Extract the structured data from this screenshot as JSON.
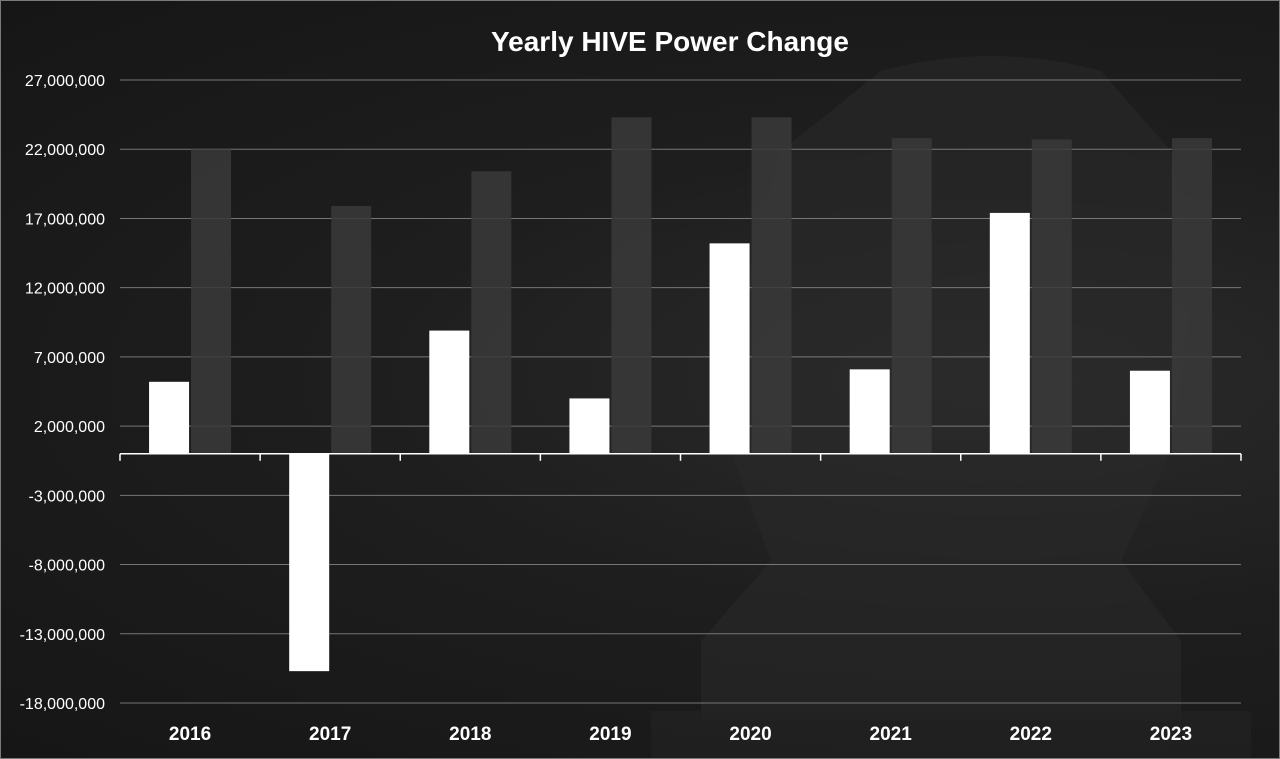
{
  "colors": {
    "background": "#1c1c1c",
    "primary_bar": "#ffffff",
    "secondary_bar": "#3a3a3a",
    "grid": "#8c8c8c",
    "text": "#ffffff"
  },
  "chart_data": {
    "type": "bar",
    "title": "Yearly HIVE Power Change",
    "xlabel": "",
    "ylabel": "",
    "categories": [
      "2016",
      "2017",
      "2018",
      "2019",
      "2020",
      "2021",
      "2022",
      "2023"
    ],
    "series": [
      {
        "values": [
          5200000,
          -15700000,
          8900000,
          4000000,
          15200000,
          6100000,
          17400000,
          6000000
        ]
      },
      {
        "values": [
          22000000,
          17900000,
          20400000,
          24300000,
          24300000,
          22800000,
          22700000,
          22800000
        ]
      }
    ],
    "ylim": [
      -18000000,
      27000000
    ],
    "yticks": [
      27000000,
      22000000,
      17000000,
      12000000,
      7000000,
      2000000,
      -3000000,
      -8000000,
      -13000000,
      -18000000
    ],
    "ytick_labels": [
      "27,000,000",
      "22,000,000",
      "17,000,000",
      "12,000,000",
      "7,000,000",
      "2,000,000",
      "-3,000,000",
      "-8,000,000",
      "-13,000,000",
      "-18,000,000"
    ],
    "grid": true,
    "legend": "none"
  }
}
